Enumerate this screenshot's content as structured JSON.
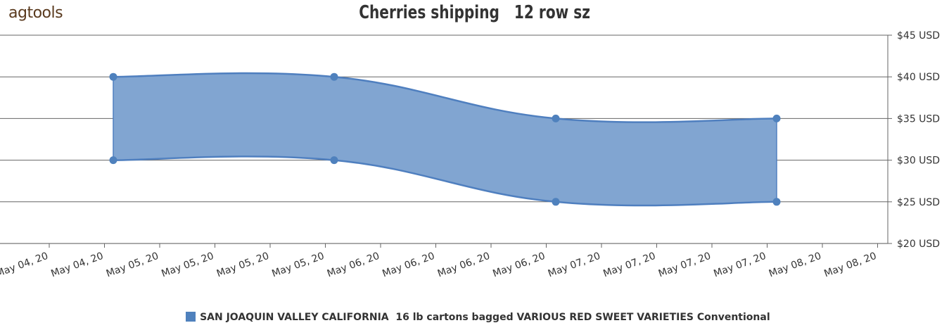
{
  "logo": {
    "text": "agtools"
  },
  "chart_data": {
    "type": "area",
    "title": "Cherries shipping   12 row sz",
    "xlabel": "",
    "ylabel": "",
    "ylim": [
      20,
      45
    ],
    "y_ticks": [
      20,
      25,
      30,
      35,
      40,
      45
    ],
    "y_tick_labels": [
      "$20 USD",
      "$25 USD",
      "$30 USD",
      "$35 USD",
      "$40 USD",
      "$45 USD"
    ],
    "x_tick_labels": [
      "May 04, 20",
      "May 04, 20",
      "May 05, 20",
      "May 05, 20",
      "May 05, 20",
      "May 05, 20",
      "May 06, 20",
      "May 06, 20",
      "May 06, 20",
      "May 06, 20",
      "May 07, 20",
      "May 07, 20",
      "May 07, 20",
      "May 07, 20",
      "May 08, 20",
      "May 08, 20"
    ],
    "grid": true,
    "legend_position": "bottom",
    "series": [
      {
        "name": "SAN JOAQUIN VALLEY CALIFORNIA  16 lb cartons bagged VARIOUS RED SWEET VARIETIES Conventional",
        "color": "#4f81bd",
        "x": [
          "May 04, 20",
          "May 05, 20",
          "May 06, 20",
          "May 07, 20"
        ],
        "low": [
          30,
          30,
          25,
          25
        ],
        "high": [
          40,
          40,
          35,
          35
        ]
      }
    ]
  }
}
